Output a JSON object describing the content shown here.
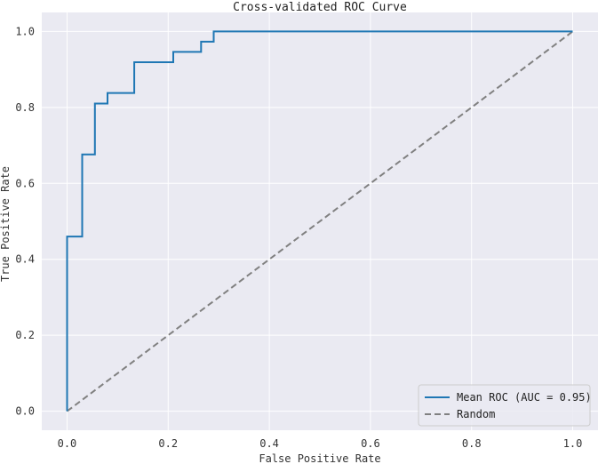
{
  "chart_data": {
    "type": "line",
    "title": "Cross-validated ROC Curve",
    "xlabel": "False Positive Rate",
    "ylabel": "True Positive Rate",
    "xlim": [
      -0.05,
      1.05
    ],
    "ylim": [
      -0.05,
      1.05
    ],
    "xticks": [
      0.0,
      0.2,
      0.4,
      0.6,
      0.8,
      1.0
    ],
    "yticks": [
      0.0,
      0.2,
      0.4,
      0.6,
      0.8,
      1.0
    ],
    "xtick_labels": [
      "0.0",
      "0.2",
      "0.4",
      "0.6",
      "0.8",
      "1.0"
    ],
    "ytick_labels": [
      "0.0",
      "0.2",
      "0.4",
      "0.6",
      "0.8",
      "1.0"
    ],
    "grid": true,
    "legend_position": "bottom-right",
    "background_color": "#eaeaf2",
    "series": [
      {
        "name": "Mean ROC (AUC = 0.95)",
        "color": "#1f77b4",
        "style": "solid",
        "x": [
          0.0,
          0.0,
          0.03,
          0.03,
          0.055,
          0.055,
          0.08,
          0.08,
          0.133,
          0.133,
          0.21,
          0.21,
          0.265,
          0.265,
          0.29,
          0.29,
          1.0
        ],
        "y": [
          0.0,
          0.46,
          0.46,
          0.676,
          0.676,
          0.81,
          0.81,
          0.838,
          0.838,
          0.919,
          0.919,
          0.946,
          0.946,
          0.973,
          0.973,
          1.0,
          1.0
        ]
      },
      {
        "name": "Random",
        "color": "#808080",
        "style": "dashed",
        "x": [
          0.0,
          1.0
        ],
        "y": [
          0.0,
          1.0
        ]
      }
    ]
  }
}
